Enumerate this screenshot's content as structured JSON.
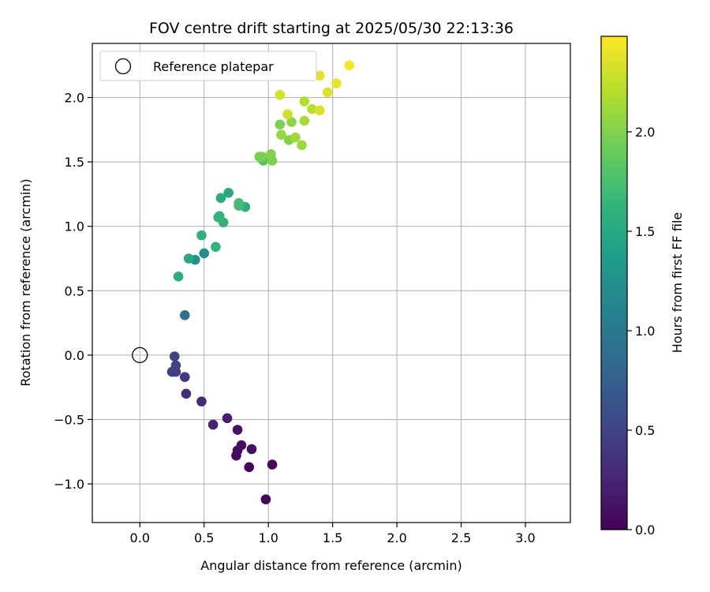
{
  "chart_data": {
    "type": "scatter",
    "title": "FOV centre drift starting at 2025/05/30 22:13:36",
    "xlabel": "Angular distance from reference (arcmin)",
    "ylabel": "Rotation from reference (arcmin)",
    "xlim": [
      -0.37,
      3.35
    ],
    "ylim": [
      -1.3,
      2.42
    ],
    "xticks": [
      0.0,
      0.5,
      1.0,
      1.5,
      2.0,
      2.5,
      3.0
    ],
    "xtick_labels": [
      "0.0",
      "0.5",
      "1.0",
      "1.5",
      "2.0",
      "2.5",
      "3.0"
    ],
    "yticks": [
      -1.0,
      -0.5,
      0.0,
      0.5,
      1.0,
      1.5,
      2.0
    ],
    "ytick_labels": [
      "−1.0",
      "−0.5",
      "0.0",
      "0.5",
      "1.0",
      "1.5",
      "2.0"
    ],
    "grid": true,
    "colormap": "viridis",
    "colorbar": {
      "label": "Hours from first FF file",
      "range": [
        0,
        2.48
      ],
      "ticks": [
        0.0,
        0.5,
        1.0,
        1.5,
        2.0
      ],
      "tick_labels": [
        "0.0",
        "0.5",
        "1.0",
        "1.5",
        "2.0"
      ]
    },
    "legend": {
      "position": "top-left",
      "entries": [
        "Reference platepar"
      ]
    },
    "reference_point": {
      "x": 0.0,
      "y": 0.0,
      "label": "Reference platepar"
    },
    "points": [
      {
        "x": 0.98,
        "y": -1.12,
        "hours": 0.02
      },
      {
        "x": 0.85,
        "y": -0.87,
        "hours": 0.03
      },
      {
        "x": 1.03,
        "y": -0.85,
        "hours": 0.05
      },
      {
        "x": 0.75,
        "y": -0.78,
        "hours": 0.06
      },
      {
        "x": 0.76,
        "y": -0.74,
        "hours": 0.08
      },
      {
        "x": 0.87,
        "y": -0.73,
        "hours": 0.09
      },
      {
        "x": 0.79,
        "y": -0.7,
        "hours": 0.1
      },
      {
        "x": 0.76,
        "y": -0.58,
        "hours": 0.12
      },
      {
        "x": 0.68,
        "y": -0.49,
        "hours": 0.2
      },
      {
        "x": 0.57,
        "y": -0.54,
        "hours": 0.22
      },
      {
        "x": 0.48,
        "y": -0.36,
        "hours": 0.28
      },
      {
        "x": 0.36,
        "y": -0.3,
        "hours": 0.32
      },
      {
        "x": 0.35,
        "y": -0.17,
        "hours": 0.4
      },
      {
        "x": 0.25,
        "y": -0.13,
        "hours": 0.45
      },
      {
        "x": 0.28,
        "y": -0.13,
        "hours": 0.46
      },
      {
        "x": 0.28,
        "y": -0.08,
        "hours": 0.48
      },
      {
        "x": 0.27,
        "y": -0.01,
        "hours": 0.5
      },
      {
        "x": 0.35,
        "y": 0.31,
        "hours": 0.95
      },
      {
        "x": 0.3,
        "y": 0.61,
        "hours": 1.55
      },
      {
        "x": 0.43,
        "y": 0.74,
        "hours": 1.25
      },
      {
        "x": 0.38,
        "y": 0.75,
        "hours": 1.5
      },
      {
        "x": 0.5,
        "y": 0.79,
        "hours": 1.2
      },
      {
        "x": 0.59,
        "y": 0.84,
        "hours": 1.62
      },
      {
        "x": 0.48,
        "y": 0.93,
        "hours": 1.58
      },
      {
        "x": 0.65,
        "y": 1.03,
        "hours": 1.6
      },
      {
        "x": 0.61,
        "y": 1.07,
        "hours": 1.65
      },
      {
        "x": 0.62,
        "y": 1.08,
        "hours": 1.63
      },
      {
        "x": 0.82,
        "y": 1.15,
        "hours": 1.55
      },
      {
        "x": 0.77,
        "y": 1.16,
        "hours": 1.7
      },
      {
        "x": 0.77,
        "y": 1.18,
        "hours": 1.72
      },
      {
        "x": 0.63,
        "y": 1.22,
        "hours": 1.52
      },
      {
        "x": 0.69,
        "y": 1.26,
        "hours": 1.5
      },
      {
        "x": 0.96,
        "y": 1.51,
        "hours": 1.82
      },
      {
        "x": 1.03,
        "y": 1.51,
        "hours": 1.98
      },
      {
        "x": 0.93,
        "y": 1.54,
        "hours": 1.95
      },
      {
        "x": 0.95,
        "y": 1.54,
        "hours": 1.97
      },
      {
        "x": 1.02,
        "y": 1.56,
        "hours": 1.99
      },
      {
        "x": 1.26,
        "y": 1.63,
        "hours": 2.1
      },
      {
        "x": 1.16,
        "y": 1.67,
        "hours": 2.02
      },
      {
        "x": 1.21,
        "y": 1.69,
        "hours": 2.12
      },
      {
        "x": 1.1,
        "y": 1.71,
        "hours": 2.08
      },
      {
        "x": 1.09,
        "y": 1.79,
        "hours": 1.98
      },
      {
        "x": 1.18,
        "y": 1.81,
        "hours": 2.05
      },
      {
        "x": 1.28,
        "y": 1.82,
        "hours": 2.15
      },
      {
        "x": 1.15,
        "y": 1.87,
        "hours": 2.3
      },
      {
        "x": 1.34,
        "y": 1.91,
        "hours": 2.22
      },
      {
        "x": 1.4,
        "y": 1.9,
        "hours": 2.35
      },
      {
        "x": 1.28,
        "y": 1.97,
        "hours": 2.2
      },
      {
        "x": 1.09,
        "y": 2.02,
        "hours": 2.32
      },
      {
        "x": 1.46,
        "y": 2.04,
        "hours": 2.36
      },
      {
        "x": 1.53,
        "y": 2.11,
        "hours": 2.4
      },
      {
        "x": 1.4,
        "y": 2.17,
        "hours": 2.38
      },
      {
        "x": 1.63,
        "y": 2.25,
        "hours": 2.45
      }
    ]
  }
}
